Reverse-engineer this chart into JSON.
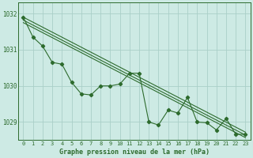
{
  "background_color": "#cdeae4",
  "grid_color": "#aacfc8",
  "line_color": "#2d6b2d",
  "text_color": "#2d6b2d",
  "xlabel": "Graphe pression niveau de la mer (hPa)",
  "ylim": [
    1028.5,
    1032.3
  ],
  "xlim": [
    -0.5,
    23.5
  ],
  "yticks": [
    1029,
    1030,
    1031,
    1032
  ],
  "xticks": [
    0,
    1,
    2,
    3,
    4,
    5,
    6,
    7,
    8,
    9,
    10,
    11,
    12,
    13,
    14,
    15,
    16,
    17,
    18,
    19,
    20,
    21,
    22,
    23
  ],
  "data_x": [
    0,
    1,
    2,
    3,
    4,
    5,
    6,
    7,
    8,
    9,
    10,
    11,
    12,
    13,
    14,
    15,
    16,
    17,
    18,
    19,
    20,
    21,
    22,
    23
  ],
  "data_y": [
    1031.9,
    1031.35,
    1031.1,
    1030.65,
    1030.6,
    1030.1,
    1029.78,
    1029.75,
    1030.0,
    1030.0,
    1030.05,
    1030.35,
    1030.35,
    1029.0,
    1028.92,
    1029.33,
    1029.25,
    1029.68,
    1029.0,
    1028.98,
    1028.78,
    1029.1,
    1028.66,
    1028.66
  ],
  "trend1_x": [
    0,
    23
  ],
  "trend1_y": [
    1031.9,
    1028.72
  ],
  "trend2_x": [
    0,
    23
  ],
  "trend2_y": [
    1031.82,
    1028.64
  ],
  "trend3_x": [
    0,
    23
  ],
  "trend3_y": [
    1031.75,
    1028.57
  ]
}
